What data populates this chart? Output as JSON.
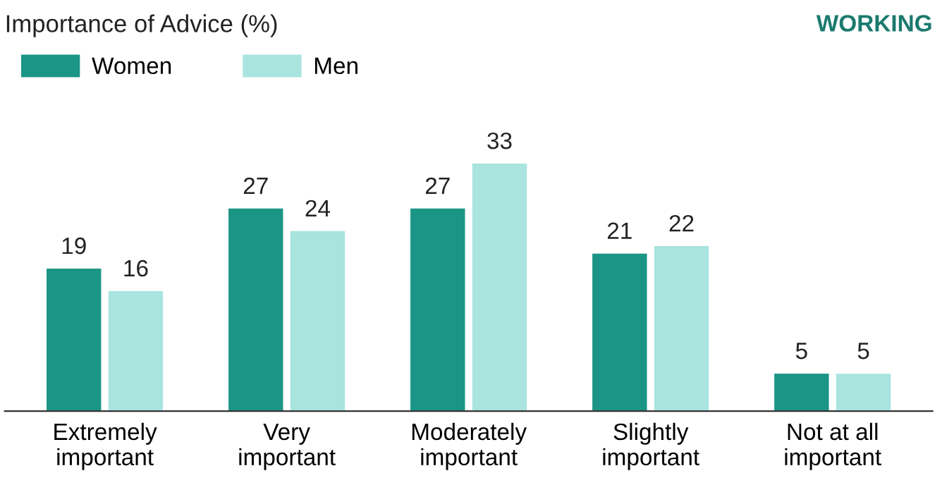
{
  "chart_data": {
    "type": "bar",
    "title": "Importance of Advice (%)",
    "annotations": [
      "WORKING"
    ],
    "categories": [
      "Extremely\nimportant",
      "Very\nimportant",
      "Moderately\nimportant",
      "Slightly\nimportant",
      "Not at all\nimportant"
    ],
    "series": [
      {
        "name": "Women",
        "color": "#1b9585",
        "values": [
          19,
          27,
          27,
          21,
          5
        ]
      },
      {
        "name": "Men",
        "color": "#a9e4df",
        "values": [
          16,
          24,
          33,
          22,
          5
        ]
      }
    ],
    "data_labels": true,
    "legend": "top left",
    "grid": false
  }
}
